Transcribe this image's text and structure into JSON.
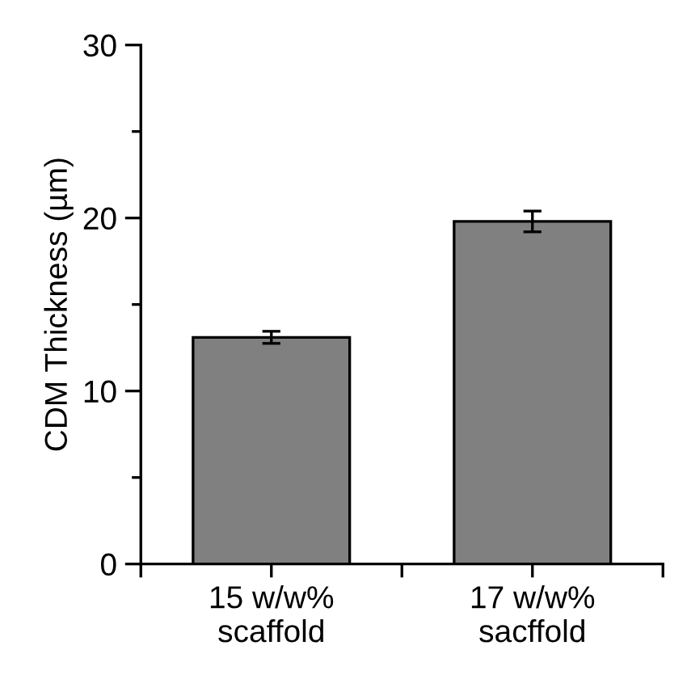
{
  "chart_data": {
    "type": "bar",
    "categories": [
      "15 w/w%\nscaffold",
      "17 w/w%\nsacffold"
    ],
    "values": [
      13.1,
      19.8
    ],
    "errors": [
      0.35,
      0.6
    ],
    "color": "#808080",
    "ylabel": "CDM Thickness (µm)",
    "ylim": [
      0,
      30
    ],
    "yticks": [
      0,
      {
        "value": 5,
        "label": null
      },
      10,
      {
        "value": 15,
        "label": null
      },
      20,
      {
        "value": 25,
        "label": null
      },
      30
    ],
    "grid": false
  }
}
